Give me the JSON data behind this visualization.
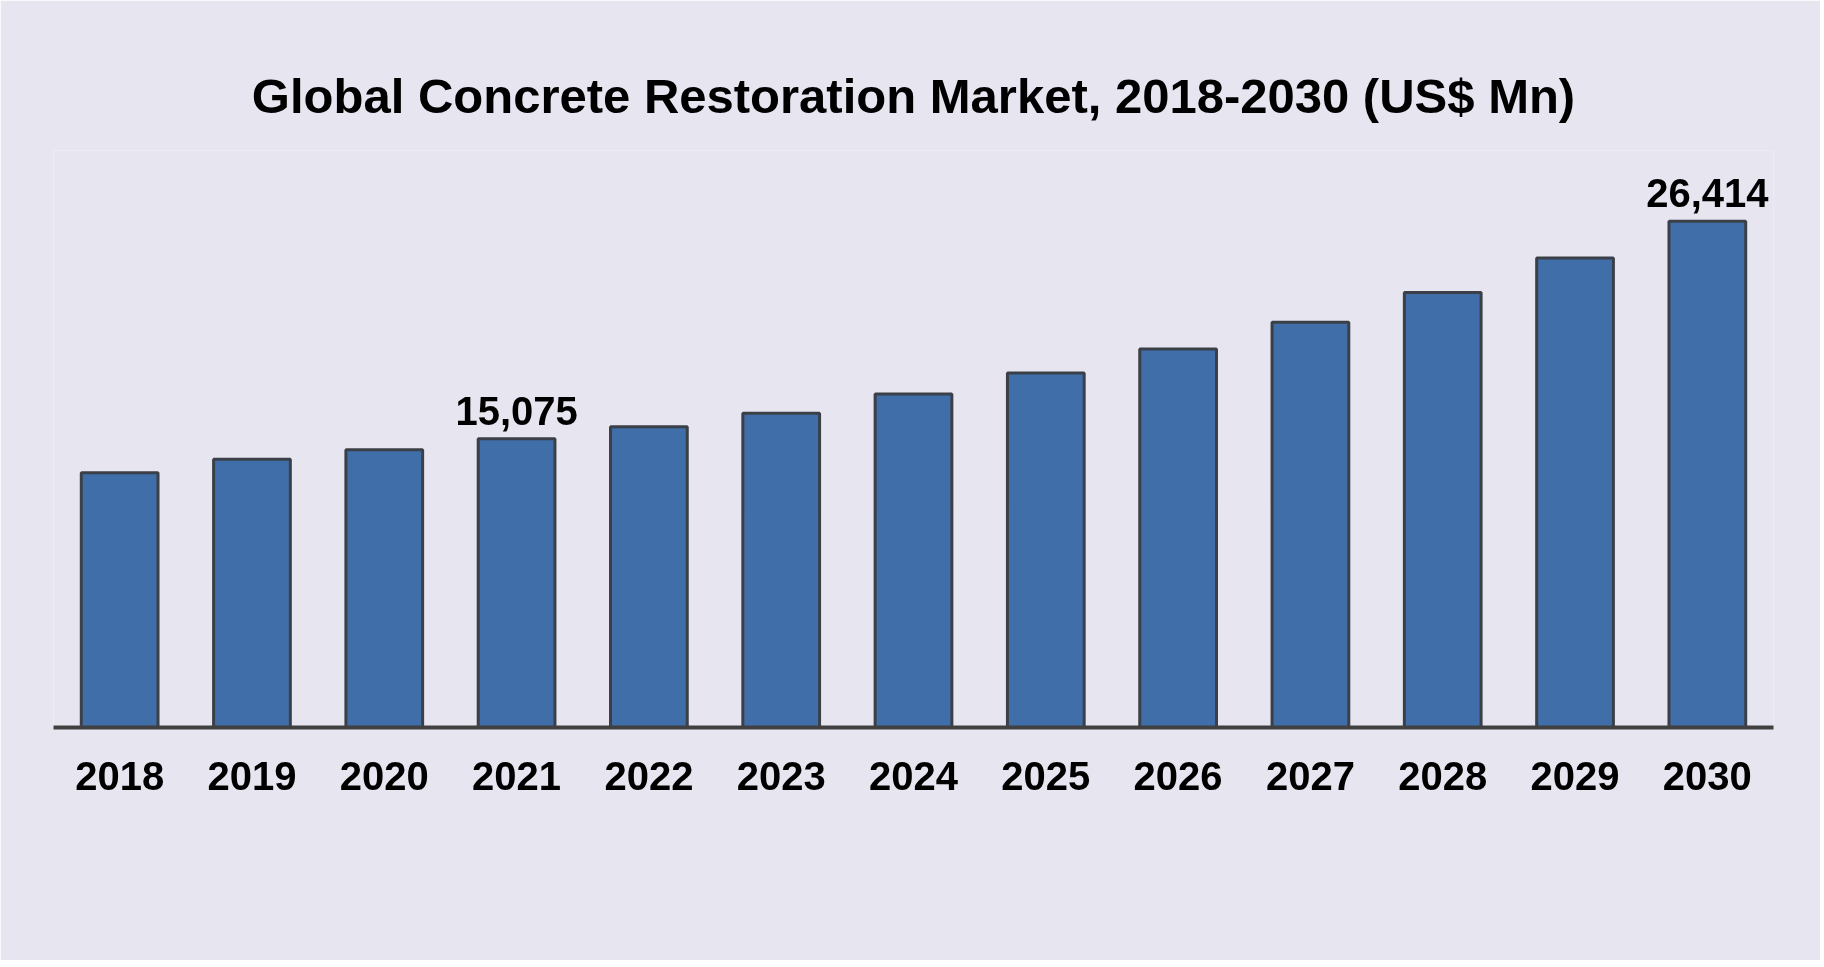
{
  "chart_data": {
    "type": "bar",
    "title": "Global Concrete Restoration Market, 2018-2030 (US$ Mn)",
    "categories": [
      "2018",
      "2019",
      "2020",
      "2021",
      "2022",
      "2023",
      "2024",
      "2025",
      "2026",
      "2027",
      "2028",
      "2029",
      "2030"
    ],
    "values": [
      13300,
      14000,
      14500,
      15075,
      15700,
      16400,
      17400,
      18500,
      19750,
      21150,
      22700,
      24500,
      26414
    ],
    "color": "#3f6ea8",
    "value_labels": [
      null,
      null,
      null,
      "15,075",
      null,
      null,
      null,
      null,
      null,
      null,
      null,
      null,
      "26,414"
    ]
  }
}
